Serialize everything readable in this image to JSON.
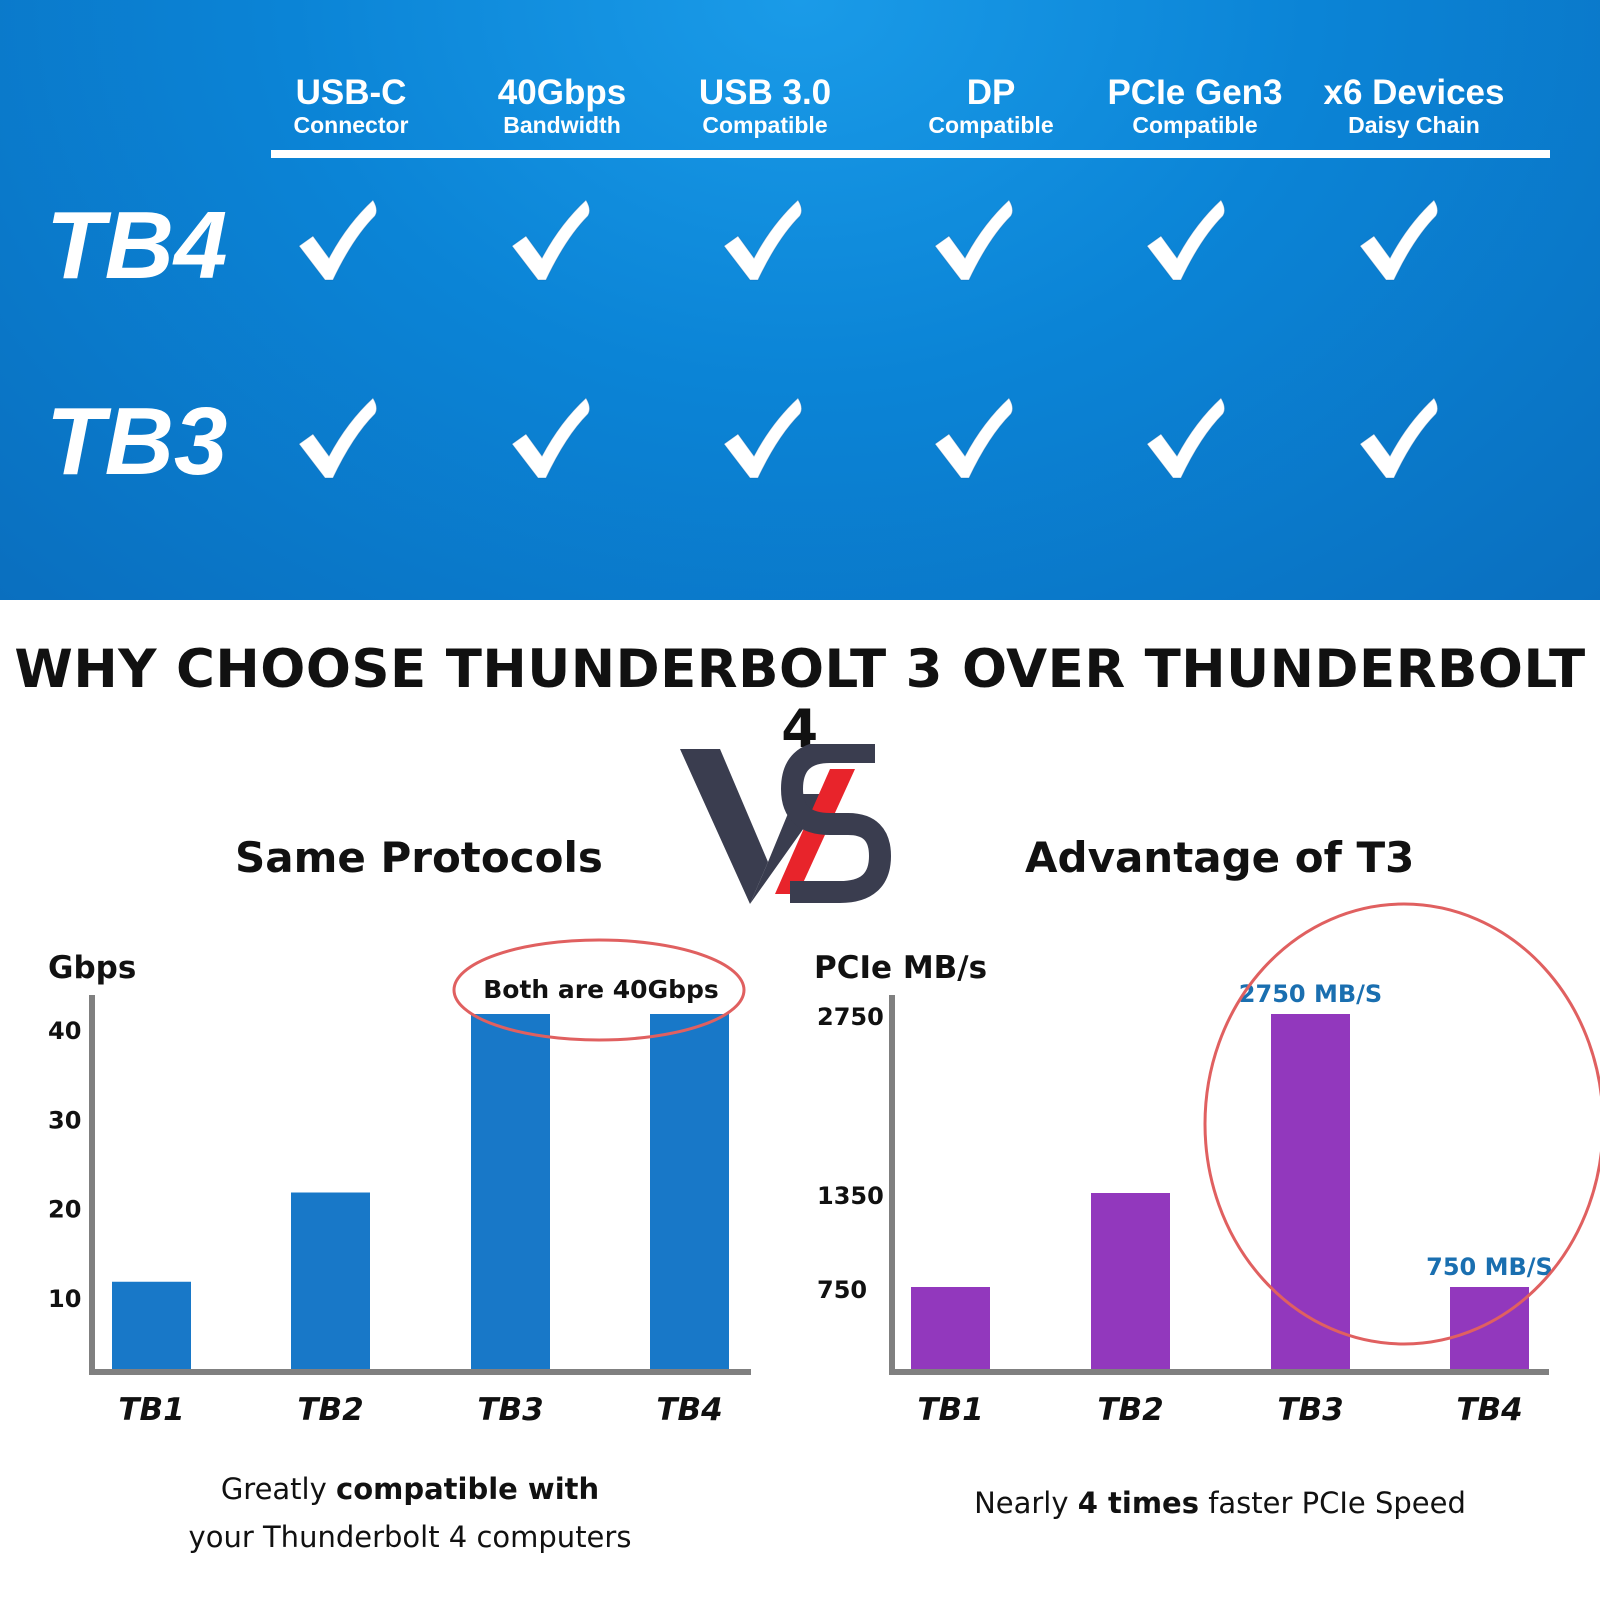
{
  "features": [
    {
      "title": "USB-C",
      "subtitle": "Connector"
    },
    {
      "title": "40Gbps",
      "subtitle": "Bandwidth"
    },
    {
      "title": "USB 3.0",
      "subtitle": "Compatible"
    },
    {
      "title": "DP",
      "subtitle": "Compatible"
    },
    {
      "title": "PCIe Gen3",
      "subtitle": "Compatible"
    },
    {
      "title": "x6 Devices",
      "subtitle": "Daisy Chain"
    }
  ],
  "rows": [
    {
      "label": "TB4",
      "checks": [
        true,
        true,
        true,
        true,
        true,
        true
      ]
    },
    {
      "label": "TB3",
      "checks": [
        true,
        true,
        true,
        true,
        true,
        true
      ]
    }
  ],
  "heading": "WHY CHOOSE THUNDERBOLT 3 OVER THUNDERBOLT 4",
  "left": {
    "title": "Same Protocols"
  },
  "right": {
    "title": "Advantage of T3"
  },
  "colors": {
    "banner": "#0b84d6",
    "left_bar": "#1878c8",
    "right_bar": "#9238bd",
    "axis": "#808080",
    "circle": "#e06060",
    "label_blue": "#1a6fb0",
    "vs_dark": "#3a3d4f",
    "vs_red": "#e8242b"
  },
  "captions": {
    "left_line1_normal": "Greatly ",
    "left_line1_bold": "compatible with",
    "left_line2": "your Thunderbolt 4 computers",
    "right_normal1": "Nearly ",
    "right_bold": "4 times",
    "right_normal2": " faster PCIe Speed"
  },
  "chart_data": [
    {
      "type": "bar",
      "title": "Same Protocols",
      "ylabel": "Gbps",
      "xlabel": "",
      "categories": [
        "TB1",
        "TB2",
        "TB3",
        "TB4"
      ],
      "values": [
        10,
        20,
        40,
        40
      ],
      "yticks": [
        10,
        20,
        30,
        40
      ],
      "ylim": [
        0,
        40
      ],
      "annotation": "Both are 40Gbps",
      "grid": false
    },
    {
      "type": "bar",
      "title": "Advantage of T3",
      "ylabel": "PCIe MB/s",
      "xlabel": "",
      "categories": [
        "TB1",
        "TB2",
        "TB3",
        "TB4"
      ],
      "values": [
        750,
        1350,
        2750,
        750
      ],
      "yticks": [
        750,
        1350,
        2750
      ],
      "data_labels": [
        "",
        "",
        "2750 MB/S",
        "750 MB/S"
      ],
      "grid": false
    }
  ]
}
